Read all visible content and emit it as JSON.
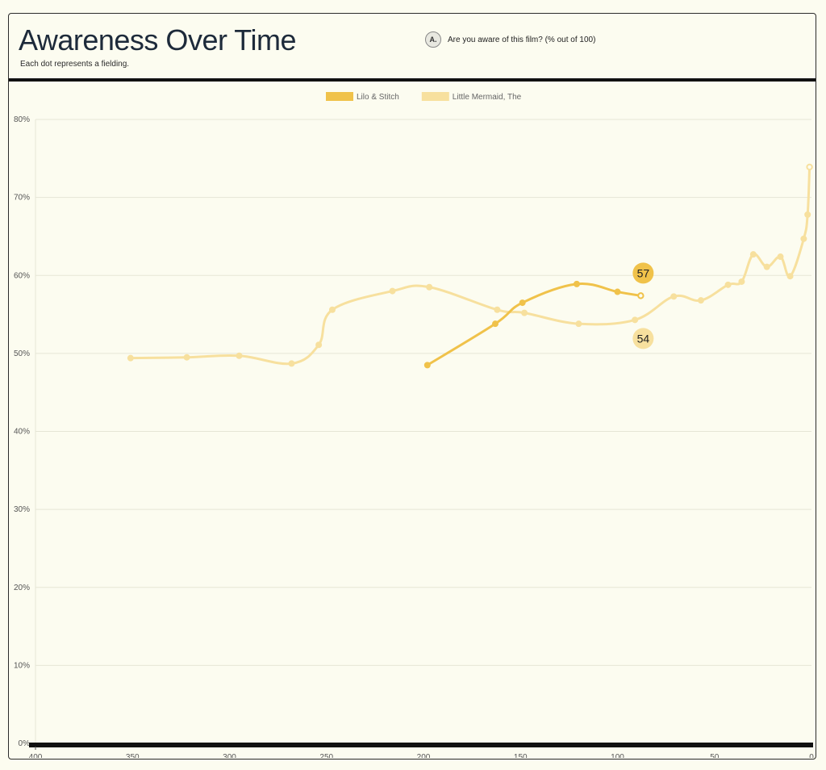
{
  "header": {
    "title": "Awareness Over Time",
    "subtitle": "Each dot represents a fielding.",
    "question_badge": "A.",
    "question_text": "Are you aware of this film? (% out of 100)"
  },
  "colors": {
    "background": "#fcfcf0",
    "title": "#1d2a3a",
    "series_lilo": "#f0c24a",
    "series_mermaid": "#f7e09e",
    "axis_bar": "#111111",
    "grid": "#e6e6d6"
  },
  "chart_data": {
    "type": "line",
    "x_axis": {
      "reversed": true,
      "range": [
        0,
        400
      ],
      "ticks": [
        "400",
        "350",
        "300",
        "250",
        "200",
        "150",
        "100",
        "50",
        "0"
      ],
      "tick_values": [
        400,
        350,
        300,
        250,
        200,
        150,
        100,
        50,
        0
      ]
    },
    "y_axis": {
      "range": [
        0,
        80
      ],
      "ticks": [
        "0%",
        "10%",
        "20%",
        "30%",
        "40%",
        "50%",
        "60%",
        "70%",
        "80%"
      ],
      "tick_values": [
        0,
        10,
        20,
        30,
        40,
        50,
        60,
        70,
        80
      ]
    },
    "grid": true,
    "legend": {
      "position": "top-center"
    },
    "series": [
      {
        "name": "Lilo & Stitch",
        "color": "#f0c24a",
        "points": [
          {
            "x": 198,
            "y": 48.5
          },
          {
            "x": 163,
            "y": 53.8
          },
          {
            "x": 149,
            "y": 56.5
          },
          {
            "x": 121,
            "y": 58.9
          },
          {
            "x": 100,
            "y": 57.9
          },
          {
            "x": 88,
            "y": 57.4
          }
        ],
        "end_label": "57"
      },
      {
        "name": "Little Mermaid, The",
        "color": "#f7e09e",
        "points": [
          {
            "x": 351,
            "y": 49.4
          },
          {
            "x": 322,
            "y": 49.5
          },
          {
            "x": 295,
            "y": 49.7
          },
          {
            "x": 268,
            "y": 48.7
          },
          {
            "x": 254,
            "y": 51.1
          },
          {
            "x": 247,
            "y": 55.6
          },
          {
            "x": 216,
            "y": 58.0
          },
          {
            "x": 197,
            "y": 58.5
          },
          {
            "x": 162,
            "y": 55.6
          },
          {
            "x": 148,
            "y": 55.2
          },
          {
            "x": 120,
            "y": 53.8
          },
          {
            "x": 91,
            "y": 54.3
          },
          {
            "x": 71,
            "y": 57.3
          },
          {
            "x": 57,
            "y": 56.8
          },
          {
            "x": 43,
            "y": 58.8
          },
          {
            "x": 36,
            "y": 59.2
          },
          {
            "x": 30,
            "y": 62.7
          },
          {
            "x": 23,
            "y": 61.1
          },
          {
            "x": 16,
            "y": 62.4
          },
          {
            "x": 11,
            "y": 59.9
          },
          {
            "x": 4,
            "y": 64.7
          },
          {
            "x": 2,
            "y": 67.8
          },
          {
            "x": 1,
            "y": 73.9
          }
        ],
        "end_label": "54"
      }
    ]
  }
}
